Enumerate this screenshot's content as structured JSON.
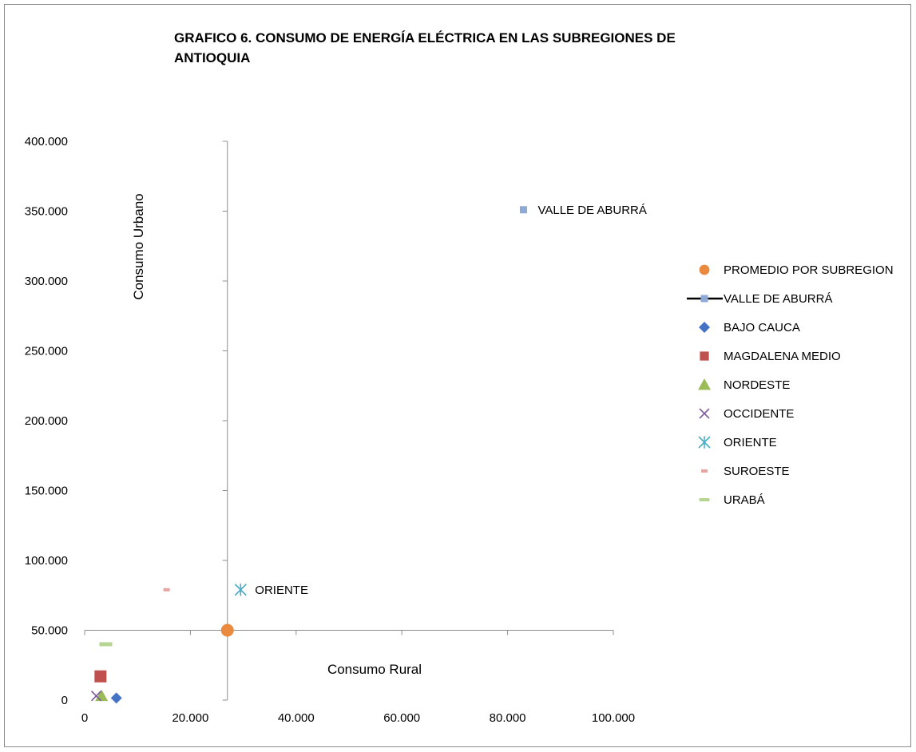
{
  "chart_data": {
    "type": "scatter",
    "title_lines": [
      "GRAFICO 6. CONSUMO DE ENERGÍA ELÉCTRICA EN LAS SUBREGIONES DE",
      "ANTIOQUIA"
    ],
    "xlabel": "Consumo Rural",
    "ylabel": "Consumo Urbano",
    "xlim": [
      0,
      100000
    ],
    "ylim": [
      0,
      400000
    ],
    "x_ticks": [
      0,
      20000,
      40000,
      60000,
      80000,
      100000
    ],
    "x_tick_labels": [
      "0",
      "20.000",
      "40.000",
      "60.000",
      "80.000",
      "100.000"
    ],
    "y_ticks": [
      0,
      50000,
      100000,
      150000,
      200000,
      250000,
      300000,
      350000,
      400000
    ],
    "y_tick_labels": [
      "0",
      "50.000",
      "100.000",
      "150.000",
      "200.000",
      "250.000",
      "300.000",
      "350.000",
      "400.000"
    ],
    "crossing_axes": {
      "x": 27000,
      "y": 50000
    },
    "grid": false,
    "legend_position": "right",
    "series": [
      {
        "name": "PROMEDIO POR SUBREGION",
        "marker": "circle",
        "color": "#E98A3F",
        "x": 27000,
        "y": 50000
      },
      {
        "name": "VALLE DE ABURRÁ",
        "marker": "square",
        "color": "#8EA9D5",
        "x": 83000,
        "y": 351000,
        "label": "VALLE DE ABURRÁ"
      },
      {
        "name": "BAJO CAUCA",
        "marker": "diamond",
        "color": "#4472C4",
        "x": 6000,
        "y": 1500
      },
      {
        "name": "MAGDALENA  MEDIO",
        "marker": "square-large",
        "color": "#C0504D",
        "x": 3000,
        "y": 17000
      },
      {
        "name": "NORDESTE",
        "marker": "triangle",
        "color": "#9BBB59",
        "x": 3200,
        "y": 3000
      },
      {
        "name": "OCCIDENTE",
        "marker": "x",
        "color": "#7F5C9E",
        "x": 2200,
        "y": 3000
      },
      {
        "name": "ORIENTE",
        "marker": "asterisk",
        "color": "#4BACC6",
        "x": 29500,
        "y": 79000,
        "label": "ORIENTE"
      },
      {
        "name": "SUROESTE",
        "marker": "dash",
        "color": "#E6A3A1",
        "x": 15500,
        "y": 79000
      },
      {
        "name": "URABÁ",
        "marker": "dash-wide",
        "color": "#B5D590",
        "x": 4000,
        "y": 40000
      }
    ]
  }
}
